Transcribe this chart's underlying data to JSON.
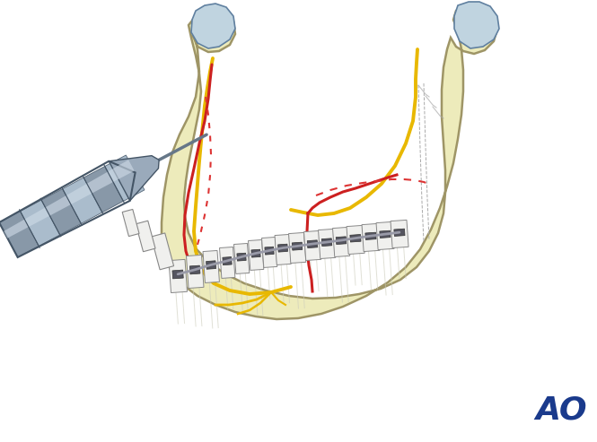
{
  "background_color": "#ffffff",
  "bone_color": "#edeab8",
  "bone_edge_color": "#9a9060",
  "bone_inner_color": "#e8e4b0",
  "nerve_yellow": "#e8b800",
  "cut_red": "#cc2020",
  "cut_dotted_red": "#dd3333",
  "drill_body_color": "#7a8898",
  "drill_band_color": "#aabccc",
  "tooth_white": "#f0f0ee",
  "bracket_dark": "#555560",
  "wire_color": "#888890",
  "condyle_blue": "#c0d4e0",
  "condyle_edge": "#6080a0",
  "ao_color": "#1a3a8c",
  "suture_gray": "#aaaaaa"
}
